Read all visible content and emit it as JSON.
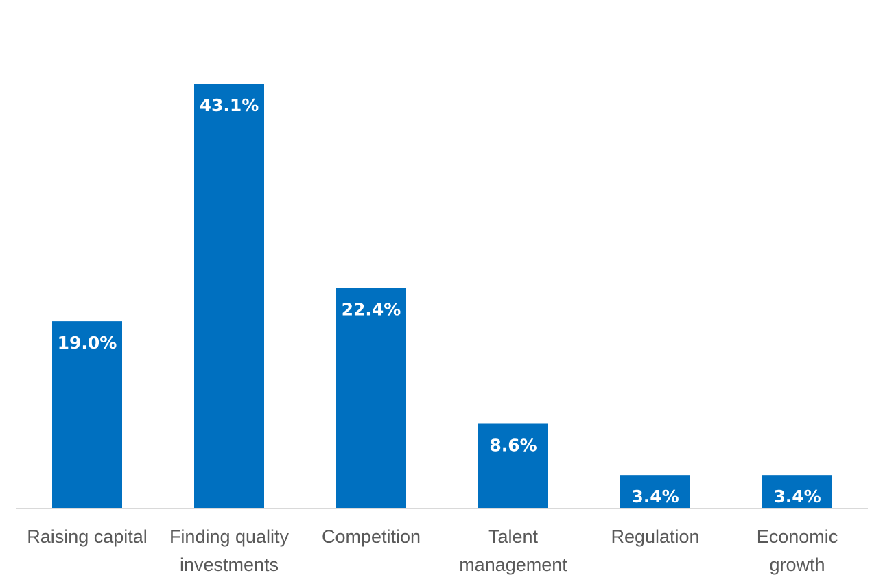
{
  "chart_data": {
    "type": "bar",
    "categories": [
      [
        "Raising capital"
      ],
      [
        "Finding quality",
        "investments"
      ],
      [
        "Competition"
      ],
      [
        "Talent",
        "management"
      ],
      [
        "Regulation"
      ],
      [
        "Economic",
        "growth"
      ]
    ],
    "values": [
      19.0,
      43.1,
      22.4,
      8.6,
      3.4,
      3.4
    ],
    "value_labels": [
      "19.0%",
      "43.1%",
      "22.4%",
      "8.6%",
      "3.4%",
      "3.4%"
    ],
    "unit": "%",
    "ylim": [
      0,
      43.1
    ],
    "grid": false,
    "legend": "none",
    "colors": {
      "bar": "#0070C0",
      "axis": "#D9D9D9",
      "label_text": "#595959",
      "value_text": "#ffffff"
    }
  }
}
